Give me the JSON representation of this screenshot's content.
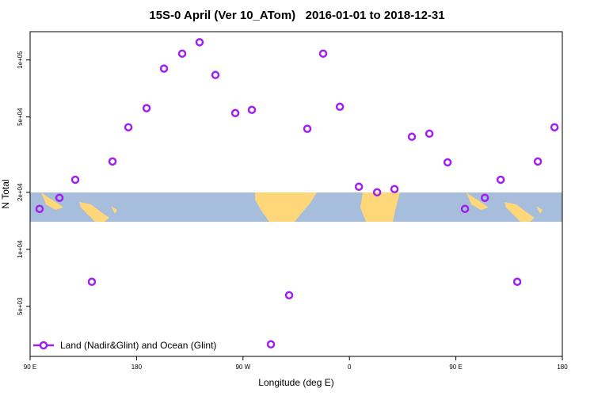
{
  "chart_data": {
    "type": "scatter",
    "title": "15S-0 April (Ver 10_ATom)   2016-01-01 to 2018-12-31",
    "xlabel": "Longitude (deg E)",
    "ylabel": "N Total",
    "log_y": true,
    "legend": "bottom-left",
    "xlim": [
      90,
      540
    ],
    "xticks": [
      {
        "value": 90,
        "label": "90 E"
      },
      180,
      {
        "value": 270,
        "label": "90 W"
      },
      {
        "value": 360,
        "label": "0"
      },
      {
        "value": 450,
        "label": "90 E"
      },
      {
        "value": 540,
        "label": "180"
      }
    ],
    "ylim": [
      2720,
      141000
    ],
    "yticks": [
      {
        "value": 5000,
        "label": "5e+03"
      },
      {
        "value": 10000,
        "label": "1e+04"
      },
      {
        "value": 20000,
        "label": "2e+04"
      },
      {
        "value": 50000,
        "label": "5e+04"
      },
      {
        "value": 100000,
        "label": "1e+05"
      }
    ],
    "series": [
      {
        "name": "Land (Nadir&Glint) and Ocean (Glint)",
        "color": "#a020f0",
        "x": [
          98.0,
          114.8,
          128.2,
          142.2,
          159.7,
          173.1,
          188.5,
          203.2,
          218.6,
          233.3,
          246.7,
          263.5,
          277.5,
          293.6,
          309.0,
          324.4,
          337.8,
          351.9,
          368.0,
          383.4,
          398.1,
          412.8,
          427.6,
          443.0,
          457.7,
          474.5,
          487.9,
          501.9,
          519.3,
          533.4
        ],
        "values": [
          16350,
          18700,
          23300,
          6740,
          29100,
          44100,
          55600,
          90000,
          108000,
          124000,
          83300,
          52400,
          54500,
          3150,
          5720,
          43300,
          108000,
          56600,
          21400,
          20000,
          20800,
          39300,
          40800,
          28800,
          16350,
          18700,
          23300,
          6740,
          29100,
          44100
        ]
      }
    ]
  }
}
